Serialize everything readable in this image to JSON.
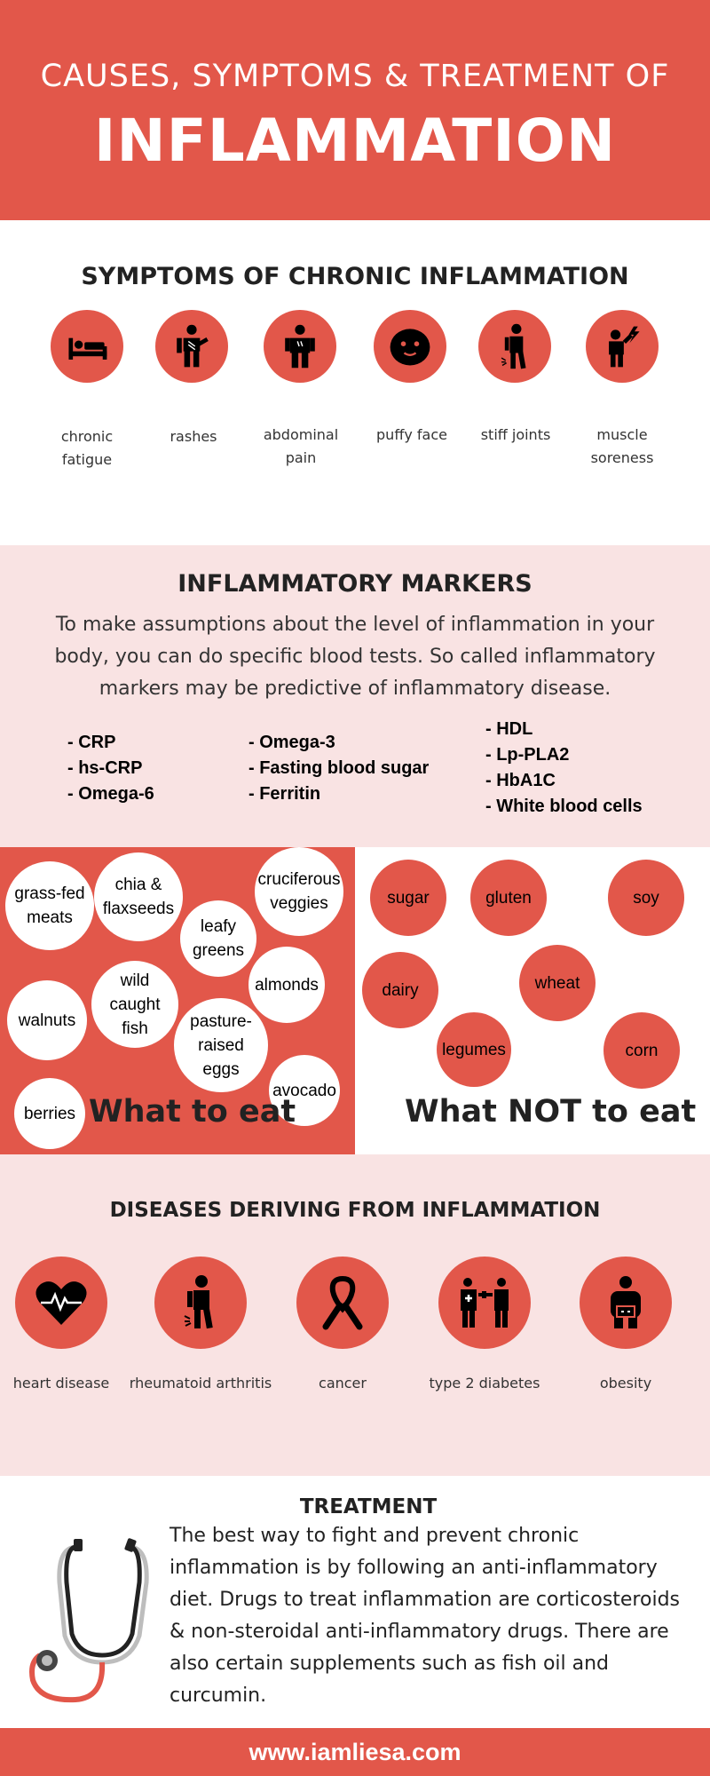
{
  "header": {
    "subtitle": "CAUSES, SYMPTOMS & TREATMENT OF",
    "title": "INFLAMMATION"
  },
  "symptoms": {
    "title": "SYMPTOMS OF CHRONIC INFLAMMATION",
    "items": [
      {
        "label": "chronic\nfatigue",
        "icon": "bed-icon"
      },
      {
        "label": "rashes",
        "icon": "scratching-person-icon"
      },
      {
        "label": "abdominal\npain",
        "icon": "stomach-pain-icon"
      },
      {
        "label": "puffy face",
        "icon": "puffy-face-icon"
      },
      {
        "label": "stiff joints",
        "icon": "stiff-joints-icon"
      },
      {
        "label": "muscle\nsoreness",
        "icon": "sore-muscle-icon"
      }
    ]
  },
  "markers": {
    "title": "INFLAMMATORY MARKERS",
    "description": "To make assumptions about the level of inflammation in your body, you can do specific blood tests. So called inflammatory markers may be predictive of inflammatory disease.",
    "col1": [
      "- CRP",
      "- hs-CRP",
      "- Omega-6"
    ],
    "col2": [
      "- Omega-3",
      "- Fasting blood sugar",
      "- Ferritin"
    ],
    "col3": [
      "- HDL",
      "- Lp-PLA2",
      "- HbA1C",
      "- White blood cells"
    ]
  },
  "eat": {
    "title": "What to eat",
    "foods": [
      "grass-fed meats",
      "chia & flaxseeds",
      "cruciferous veggies",
      "leafy greens",
      "almonds",
      "wild caught fish",
      "walnuts",
      "pasture-raised eggs",
      "avocado",
      "berries"
    ]
  },
  "not_eat": {
    "title": "What NOT to eat",
    "foods": [
      "sugar",
      "gluten",
      "soy",
      "dairy",
      "wheat",
      "legumes",
      "corn"
    ]
  },
  "diseases": {
    "title": "DISEASES DERIVING FROM INFLAMMATION",
    "items": [
      {
        "label": "heart disease",
        "icon": "heartbeat-icon"
      },
      {
        "label": "rheumatoid arthritis",
        "icon": "arthritis-icon"
      },
      {
        "label": "cancer",
        "icon": "cancer-ribbon-icon"
      },
      {
        "label": "type 2 diabetes",
        "icon": "diabetes-icon"
      },
      {
        "label": "obesity",
        "icon": "obesity-icon"
      }
    ]
  },
  "treatment": {
    "title": "TREATMENT",
    "text": "The best way to fight and prevent chronic inflammation is by following an anti-inflammatory diet. Drugs to treat inflammation are corticosteroids & non-steroidal anti-inflammatory drugs. There are also certain supplements such as fish oil and curcumin.",
    "icon": "stethoscope-icon"
  },
  "footer": {
    "url": "www.iamliesa.com"
  },
  "colors": {
    "accent": "#e2574a",
    "pink_bg": "#f9e3e3",
    "text": "#222222"
  }
}
